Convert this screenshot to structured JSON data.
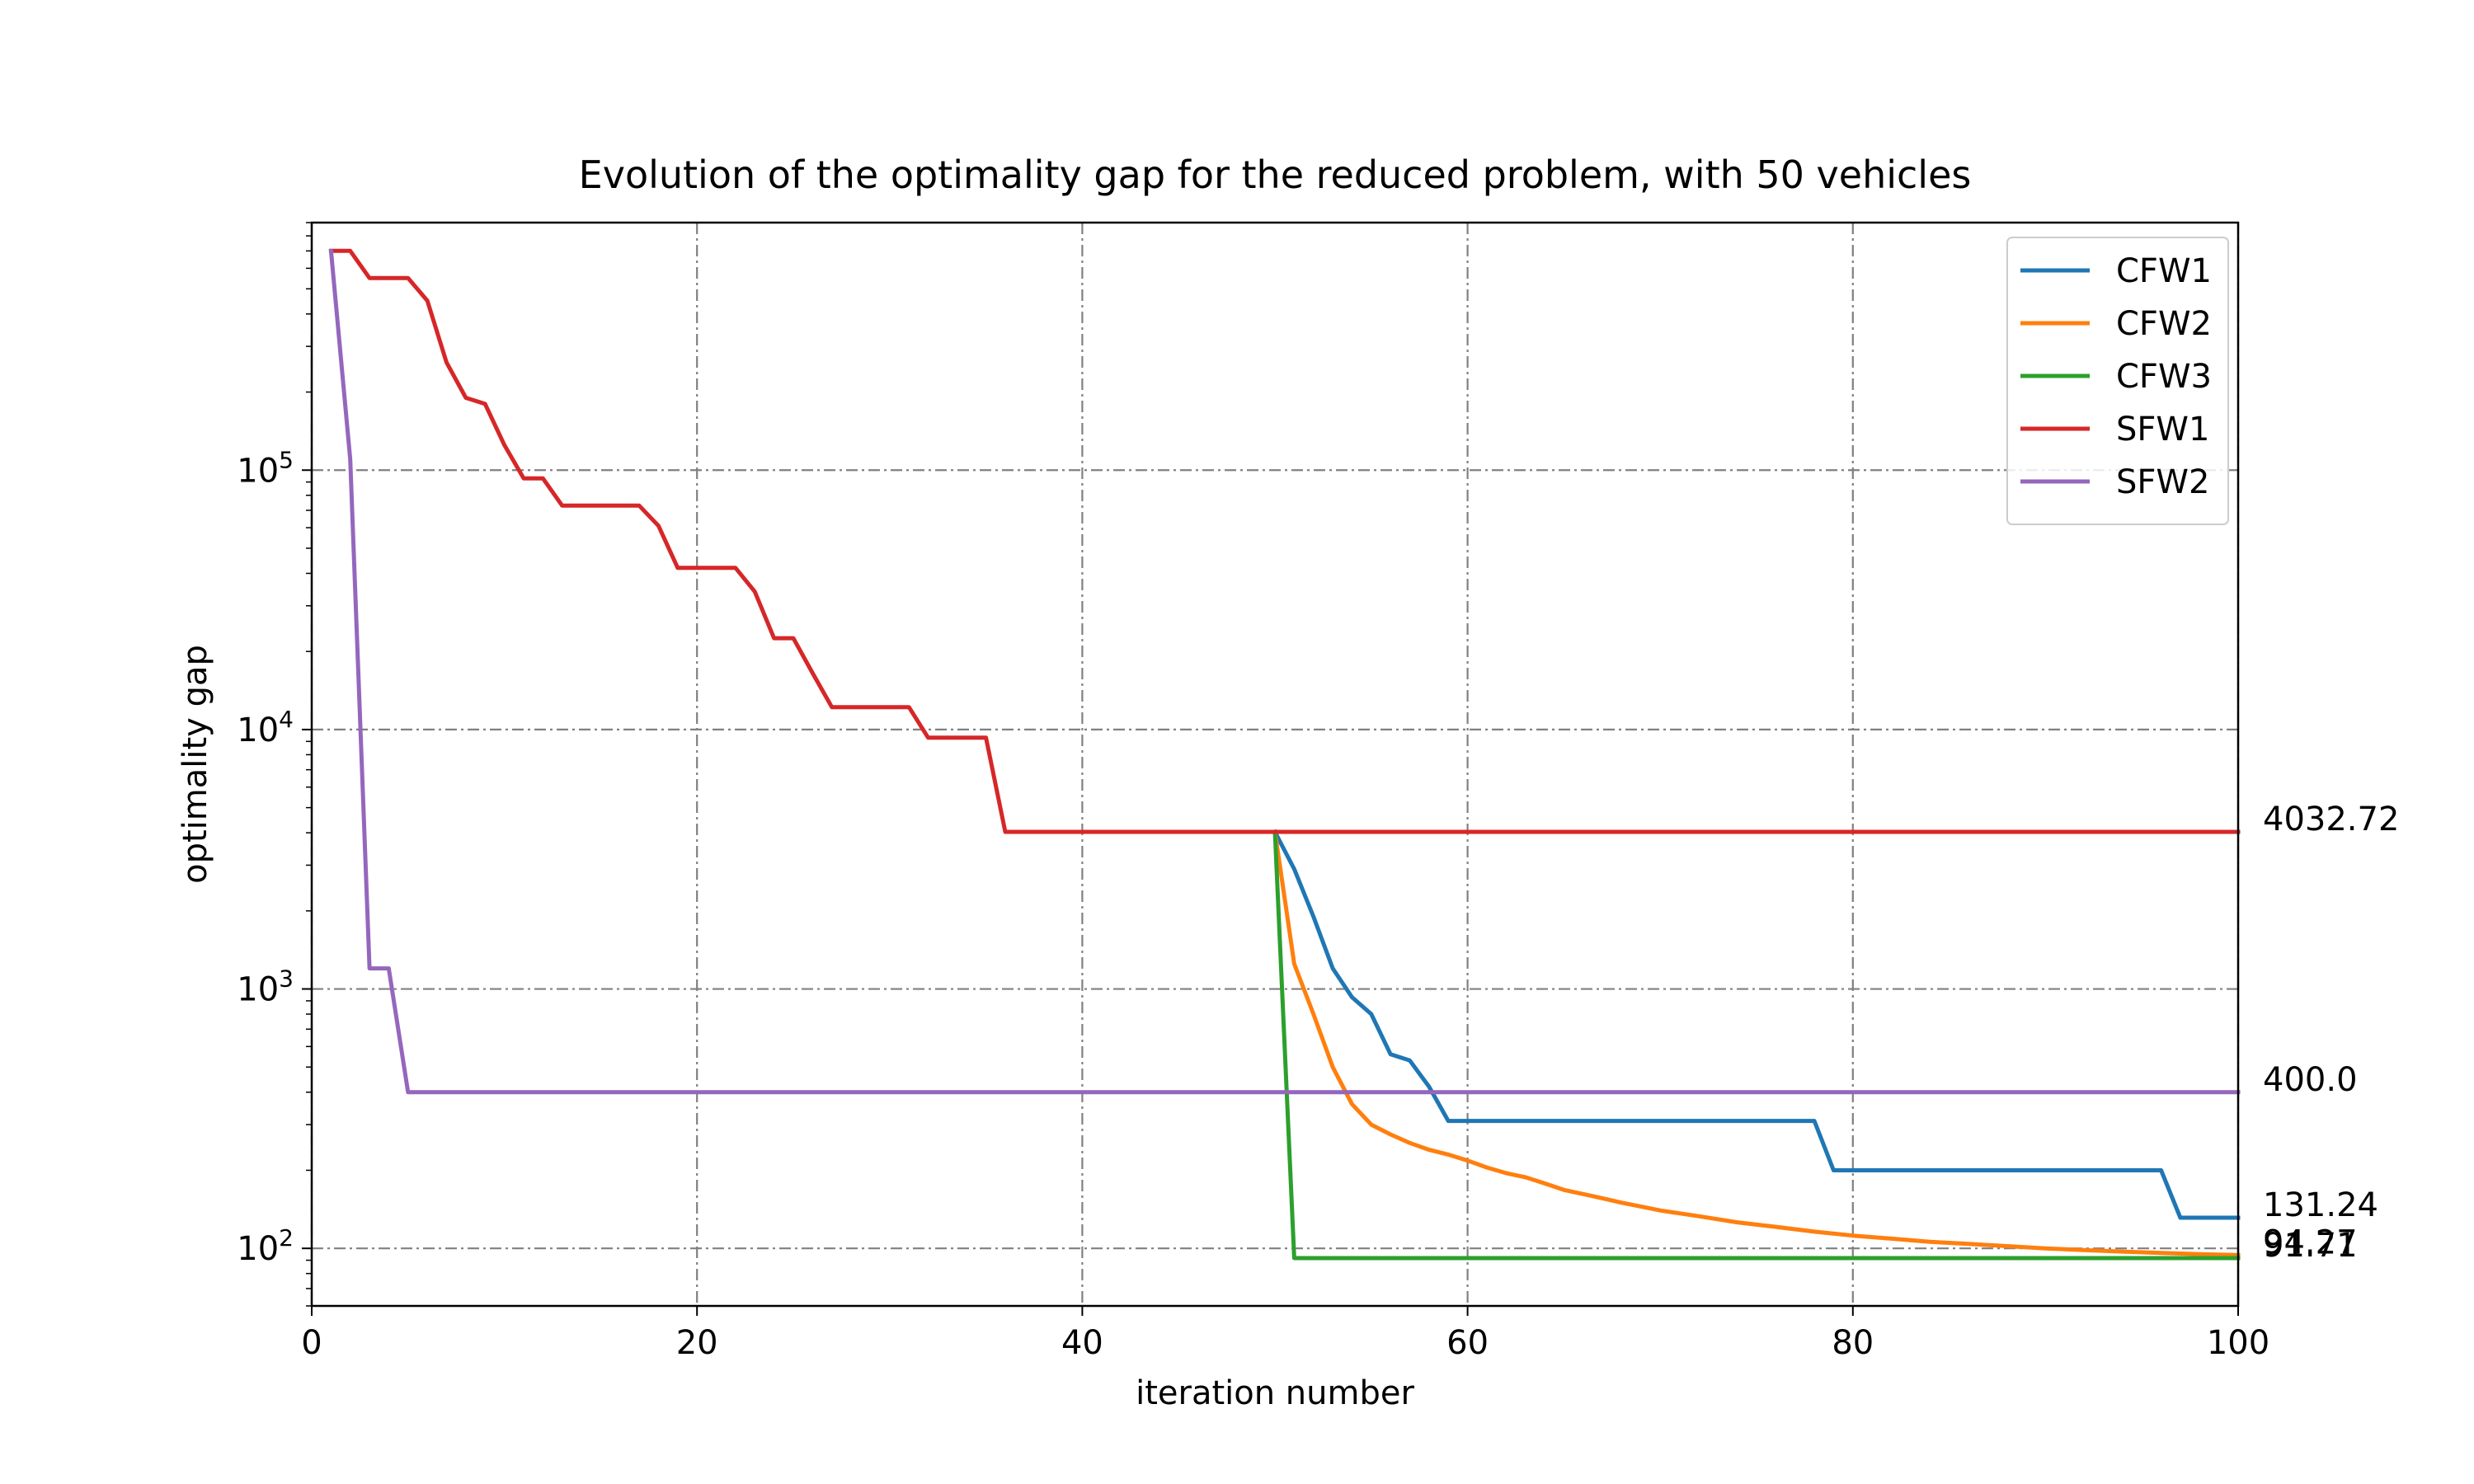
{
  "chart_data": {
    "type": "line",
    "title": "Evolution of the optimality gap for the reduced problem, with 50 vehicles",
    "xlabel": "iteration number",
    "ylabel": "optimality gap",
    "xlim": [
      0,
      100
    ],
    "ylim": [
      60,
      900000
    ],
    "yscale": "log",
    "grid": true,
    "legend_position": "top-right",
    "x_ticks": [
      {
        "value": 0,
        "label": "0"
      },
      {
        "value": 20,
        "label": "20"
      },
      {
        "value": 40,
        "label": "40"
      },
      {
        "value": 60,
        "label": "60"
      },
      {
        "value": 80,
        "label": "80"
      },
      {
        "value": 100,
        "label": "100"
      }
    ],
    "y_ticks": [
      {
        "value": 100,
        "base": "10",
        "exp": "2"
      },
      {
        "value": 1000,
        "base": "10",
        "exp": "3"
      },
      {
        "value": 10000,
        "base": "10",
        "exp": "4"
      },
      {
        "value": 100000,
        "base": "10",
        "exp": "5"
      }
    ],
    "series": [
      {
        "name": "CFW1",
        "color": "#1f77b4",
        "end_label": "131.24",
        "points": [
          [
            50,
            4032.72
          ],
          [
            51,
            2900
          ],
          [
            52,
            1900
          ],
          [
            53,
            1200
          ],
          [
            54,
            930
          ],
          [
            55,
            800
          ],
          [
            56,
            560
          ],
          [
            57,
            530
          ],
          [
            58,
            420
          ],
          [
            59,
            310
          ],
          [
            60,
            310
          ],
          [
            65,
            310
          ],
          [
            70,
            310
          ],
          [
            75,
            310
          ],
          [
            78,
            310
          ],
          [
            79,
            200
          ],
          [
            80,
            200
          ],
          [
            85,
            200
          ],
          [
            90,
            200
          ],
          [
            95,
            200
          ],
          [
            96,
            200
          ],
          [
            97,
            131.24
          ],
          [
            98,
            131.24
          ],
          [
            99,
            131.24
          ],
          [
            100,
            131.24
          ]
        ]
      },
      {
        "name": "CFW2",
        "color": "#ff7f0e",
        "end_label": "94.27",
        "points": [
          [
            50,
            4032.72
          ],
          [
            51,
            1250
          ],
          [
            52,
            800
          ],
          [
            53,
            500
          ],
          [
            54,
            360
          ],
          [
            55,
            300
          ],
          [
            56,
            275
          ],
          [
            57,
            255
          ],
          [
            58,
            240
          ],
          [
            59,
            230
          ],
          [
            60,
            218
          ],
          [
            61,
            205
          ],
          [
            62,
            195
          ],
          [
            63,
            188
          ],
          [
            64,
            178
          ],
          [
            65,
            168
          ],
          [
            66,
            162
          ],
          [
            67,
            156
          ],
          [
            68,
            150
          ],
          [
            69,
            145
          ],
          [
            70,
            140
          ],
          [
            72,
            133
          ],
          [
            74,
            126
          ],
          [
            76,
            121
          ],
          [
            78,
            116
          ],
          [
            80,
            112
          ],
          [
            82,
            109
          ],
          [
            84,
            106
          ],
          [
            86,
            104
          ],
          [
            88,
            102
          ],
          [
            90,
            100
          ],
          [
            92,
            98.5
          ],
          [
            94,
            97.2
          ],
          [
            96,
            96
          ],
          [
            98,
            95
          ],
          [
            100,
            94.27
          ]
        ]
      },
      {
        "name": "CFW3",
        "color": "#2ca02c",
        "end_label": "91.71",
        "points": [
          [
            50,
            4032.72
          ],
          [
            51,
            91.71
          ],
          [
            60,
            91.71
          ],
          [
            70,
            91.71
          ],
          [
            80,
            91.71
          ],
          [
            90,
            91.71
          ],
          [
            100,
            91.71
          ]
        ]
      },
      {
        "name": "SFW1",
        "color": "#d62728",
        "end_label": "4032.72",
        "points": [
          [
            1,
            700000
          ],
          [
            2,
            700000
          ],
          [
            3,
            550000
          ],
          [
            4,
            550000
          ],
          [
            5,
            550000
          ],
          [
            6,
            450000
          ],
          [
            7,
            260000
          ],
          [
            8,
            190000
          ],
          [
            9,
            180000
          ],
          [
            10,
            125000
          ],
          [
            11,
            93000
          ],
          [
            12,
            93000
          ],
          [
            13,
            73000
          ],
          [
            14,
            73000
          ],
          [
            15,
            73000
          ],
          [
            16,
            73000
          ],
          [
            17,
            73000
          ],
          [
            18,
            61000
          ],
          [
            19,
            42000
          ],
          [
            20,
            42000
          ],
          [
            21,
            42000
          ],
          [
            22,
            42000
          ],
          [
            23,
            34000
          ],
          [
            24,
            22500
          ],
          [
            25,
            22500
          ],
          [
            26,
            16500
          ],
          [
            27,
            12200
          ],
          [
            28,
            12200
          ],
          [
            29,
            12200
          ],
          [
            30,
            12200
          ],
          [
            31,
            12200
          ],
          [
            32,
            9300
          ],
          [
            33,
            9300
          ],
          [
            34,
            9300
          ],
          [
            35,
            9300
          ],
          [
            36,
            4032.72
          ],
          [
            40,
            4032.72
          ],
          [
            50,
            4032.72
          ],
          [
            60,
            4032.72
          ],
          [
            70,
            4032.72
          ],
          [
            80,
            4032.72
          ],
          [
            90,
            4032.72
          ],
          [
            100,
            4032.72
          ]
        ]
      },
      {
        "name": "SFW2",
        "color": "#9467bd",
        "end_label": "400.0",
        "points": [
          [
            1,
            700000
          ],
          [
            2,
            110000
          ],
          [
            3,
            1200
          ],
          [
            4,
            1200
          ],
          [
            5,
            400
          ],
          [
            10,
            400
          ],
          [
            20,
            400
          ],
          [
            30,
            400
          ],
          [
            40,
            400
          ],
          [
            50,
            400
          ],
          [
            60,
            400
          ],
          [
            70,
            400
          ],
          [
            80,
            400
          ],
          [
            90,
            400
          ],
          [
            100,
            400
          ]
        ]
      }
    ]
  }
}
